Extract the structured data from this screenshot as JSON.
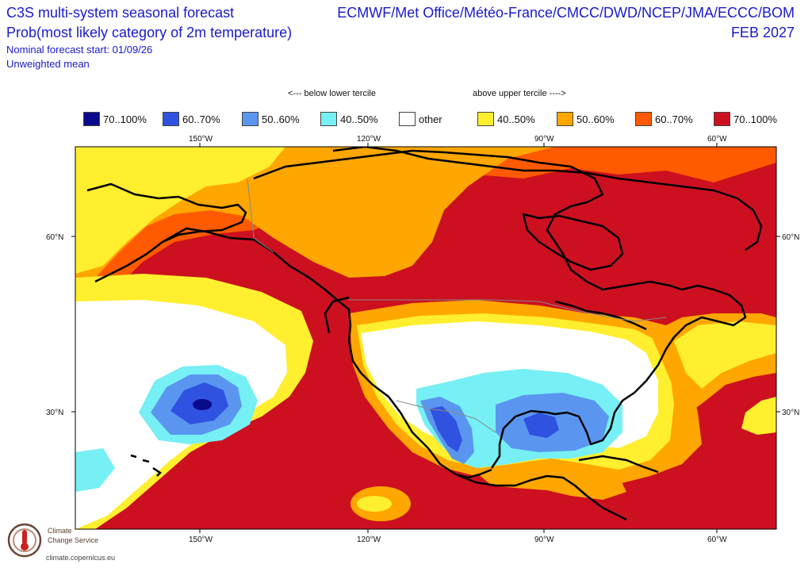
{
  "header": {
    "title_line1": "C3S multi-system seasonal forecast",
    "title_line2": "Prob(most likely category of 2m temperature)",
    "forecast_start": "Nominal forecast start: 01/09/26",
    "mean_type": "Unweighted mean",
    "centres": "ECMWF/Met Office/Météo-France/CMCC/DWD/NCEP/JMA/ECCC/BOM",
    "valid_month": "FEB 2027"
  },
  "legend": {
    "below_label": "<--- below lower tercile",
    "above_label": "above upper tercile ---->",
    "items": [
      {
        "label": "70..100%",
        "color": "#0a0a8c"
      },
      {
        "label": "60..70%",
        "color": "#2f52e0"
      },
      {
        "label": "50..60%",
        "color": "#5a96f0"
      },
      {
        "label": "40..50%",
        "color": "#76f0f4"
      },
      {
        "label": "other",
        "color": "#ffffff"
      },
      {
        "label": "40..50%",
        "color": "#ffef2e"
      },
      {
        "label": "50..60%",
        "color": "#ffa600"
      },
      {
        "label": "60..70%",
        "color": "#ff5a00"
      },
      {
        "label": "70..100%",
        "color": "#cc1020"
      }
    ]
  },
  "axes": {
    "lon_labels": [
      "150°W",
      "120°W",
      "90°W",
      "60°W"
    ],
    "lat_labels": [
      "60°N",
      "30°N"
    ]
  },
  "logo": {
    "line1": "Climate",
    "line2": "Change Service",
    "url": "climate.copernicus.eu"
  }
}
